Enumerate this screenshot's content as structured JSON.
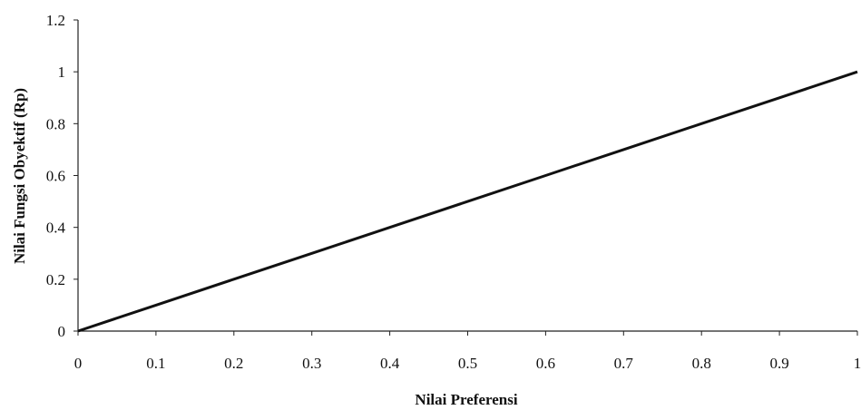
{
  "chart_data": {
    "type": "line",
    "title": "",
    "xlabel": "Nilai Preferensi",
    "ylabel": "Nilai Fungsi Obyektif (Rp)",
    "xlim": [
      0,
      1
    ],
    "ylim": [
      0,
      1.2
    ],
    "x_ticks": [
      "0",
      "0.1",
      "0.2",
      "0.3",
      "0.4",
      "0.5",
      "0.6",
      "0.7",
      "0.8",
      "0.9",
      "1"
    ],
    "y_ticks": [
      "0",
      "0.2",
      "0.4",
      "0.6",
      "0.8",
      "1",
      "1.2"
    ],
    "grid": false,
    "legend": "none",
    "series": [
      {
        "x": [
          0,
          0.1,
          0.2,
          0.3,
          0.4,
          0.5,
          0.6,
          0.7,
          0.8,
          0.9,
          1
        ],
        "y": [
          0,
          0.1,
          0.2,
          0.3,
          0.4,
          0.5,
          0.6,
          0.7,
          0.8,
          0.9,
          1
        ],
        "color": "#111111"
      }
    ]
  }
}
